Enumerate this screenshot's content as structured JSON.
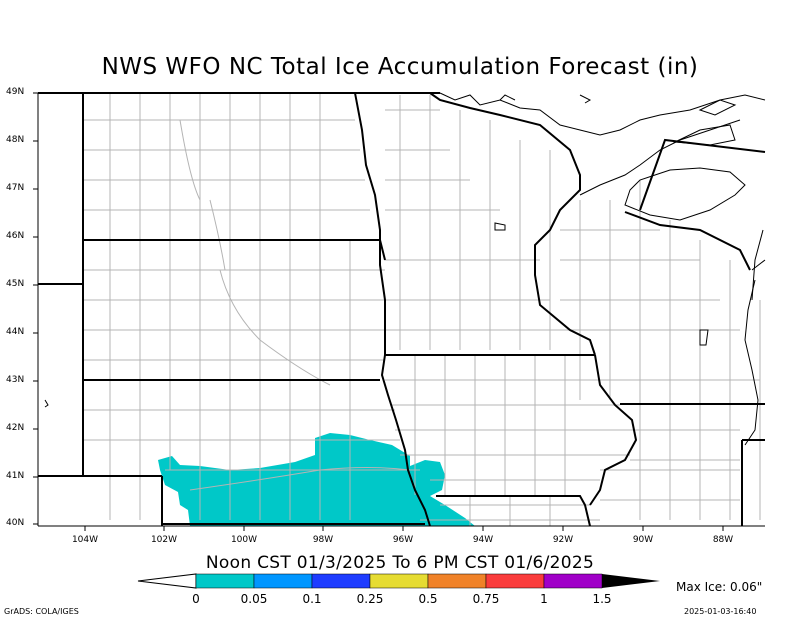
{
  "title": "NWS WFO NC Total Ice Accumulation Forecast (in)",
  "period": "Noon CST 01/3/2025 To 6 PM CST 01/6/2025",
  "lat_labels": [
    "49N",
    "48N",
    "47N",
    "46N",
    "45N",
    "44N",
    "43N",
    "42N",
    "41N",
    "40N"
  ],
  "lon_labels": [
    "104W",
    "102W",
    "100W",
    "98W",
    "96W",
    "94W",
    "92W",
    "90W",
    "88W"
  ],
  "colorbar": {
    "colors": [
      "#00c8c8",
      "#0096ff",
      "#1e3cff",
      "#e6dc32",
      "#f08228",
      "#fa3c3c",
      "#a000c8"
    ],
    "labels": [
      "0",
      "0.05",
      "0.1",
      "0.25",
      "0.5",
      "0.75",
      "1",
      "1.5"
    ]
  },
  "max_ice": "Max Ice: 0.06\"",
  "credit": "GrADS: COLA/IGES",
  "timestamp": "2025-01-03-16:40",
  "colors": {
    "ice": "#00c8c8",
    "county": "#b4b4b4",
    "state": "#000000"
  }
}
